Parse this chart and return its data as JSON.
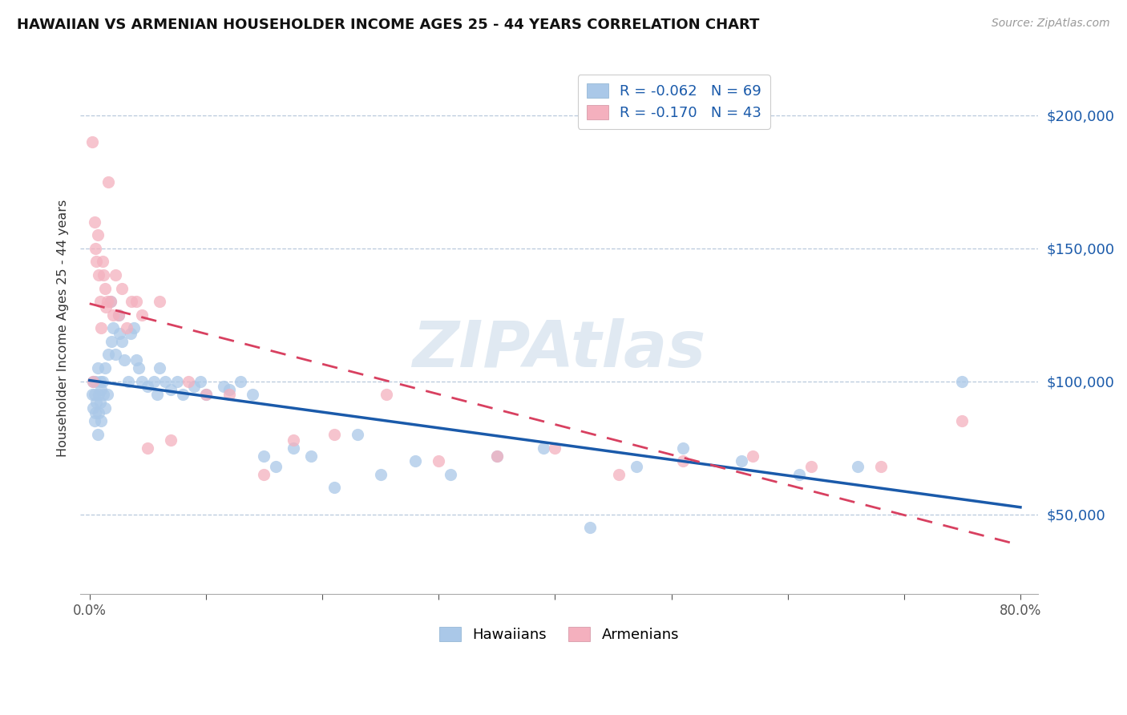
{
  "title": "HAWAIIAN VS ARMENIAN HOUSEHOLDER INCOME AGES 25 - 44 YEARS CORRELATION CHART",
  "source": "Source: ZipAtlas.com",
  "ylabel": "Householder Income Ages 25 - 44 years",
  "ytick_labels": [
    "$50,000",
    "$100,000",
    "$150,000",
    "$200,000"
  ],
  "ytick_values": [
    50000,
    100000,
    150000,
    200000
  ],
  "ylim": [
    20000,
    220000
  ],
  "xlim": [
    -0.008,
    0.815
  ],
  "hawaiian_R": "-0.062",
  "hawaiian_N": "69",
  "armenian_R": "-0.170",
  "armenian_N": "43",
  "hawaiian_scatter_color": "#aac8e8",
  "armenian_scatter_color": "#f4b0be",
  "hawaiian_line_color": "#1a5aaa",
  "armenian_line_color": "#d84060",
  "hawaiian_x": [
    0.002,
    0.003,
    0.003,
    0.004,
    0.004,
    0.005,
    0.005,
    0.006,
    0.007,
    0.007,
    0.008,
    0.008,
    0.009,
    0.009,
    0.01,
    0.01,
    0.011,
    0.012,
    0.013,
    0.013,
    0.015,
    0.016,
    0.018,
    0.019,
    0.02,
    0.022,
    0.025,
    0.026,
    0.028,
    0.03,
    0.033,
    0.035,
    0.038,
    0.04,
    0.042,
    0.045,
    0.05,
    0.055,
    0.058,
    0.06,
    0.065,
    0.07,
    0.075,
    0.08,
    0.09,
    0.095,
    0.1,
    0.115,
    0.12,
    0.13,
    0.14,
    0.15,
    0.16,
    0.175,
    0.19,
    0.21,
    0.23,
    0.25,
    0.28,
    0.31,
    0.35,
    0.39,
    0.43,
    0.47,
    0.51,
    0.56,
    0.61,
    0.66,
    0.75
  ],
  "hawaiian_y": [
    95000,
    100000,
    90000,
    85000,
    95000,
    100000,
    88000,
    92000,
    105000,
    80000,
    95000,
    88000,
    100000,
    92000,
    97000,
    85000,
    100000,
    95000,
    90000,
    105000,
    95000,
    110000,
    130000,
    115000,
    120000,
    110000,
    125000,
    118000,
    115000,
    108000,
    100000,
    118000,
    120000,
    108000,
    105000,
    100000,
    98000,
    100000,
    95000,
    105000,
    100000,
    97000,
    100000,
    95000,
    98000,
    100000,
    95000,
    98000,
    97000,
    100000,
    95000,
    72000,
    68000,
    75000,
    72000,
    60000,
    80000,
    65000,
    70000,
    65000,
    72000,
    75000,
    45000,
    68000,
    75000,
    70000,
    65000,
    68000,
    100000
  ],
  "armenian_x": [
    0.002,
    0.003,
    0.004,
    0.005,
    0.006,
    0.007,
    0.008,
    0.009,
    0.01,
    0.011,
    0.012,
    0.013,
    0.014,
    0.015,
    0.016,
    0.018,
    0.02,
    0.022,
    0.025,
    0.028,
    0.032,
    0.036,
    0.04,
    0.045,
    0.05,
    0.06,
    0.07,
    0.085,
    0.1,
    0.12,
    0.15,
    0.175,
    0.21,
    0.255,
    0.3,
    0.35,
    0.4,
    0.455,
    0.51,
    0.57,
    0.62,
    0.68,
    0.75
  ],
  "armenian_y": [
    190000,
    100000,
    160000,
    150000,
    145000,
    155000,
    140000,
    130000,
    120000,
    145000,
    140000,
    135000,
    128000,
    130000,
    175000,
    130000,
    125000,
    140000,
    125000,
    135000,
    120000,
    130000,
    130000,
    125000,
    75000,
    130000,
    78000,
    100000,
    95000,
    95000,
    65000,
    78000,
    80000,
    95000,
    70000,
    72000,
    75000,
    65000,
    70000,
    72000,
    68000,
    68000,
    85000
  ]
}
